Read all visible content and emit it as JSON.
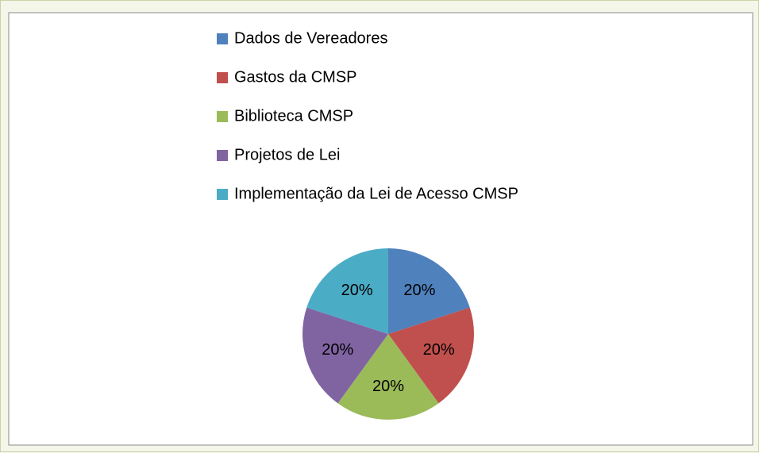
{
  "chart_data": {
    "type": "pie",
    "categories": [
      "Dados de Vereadores",
      "Gastos da CMSP",
      "Biblioteca CMSP",
      "Projetos de Lei",
      "Implementação da Lei de Acesso CMSP"
    ],
    "values": [
      20,
      20,
      20,
      20,
      20
    ],
    "value_labels": [
      "20%",
      "20%",
      "20%",
      "20%",
      "20%"
    ],
    "colors": [
      "#4f81bd",
      "#c0504d",
      "#9bbb59",
      "#8064a2",
      "#4bacc6"
    ]
  }
}
